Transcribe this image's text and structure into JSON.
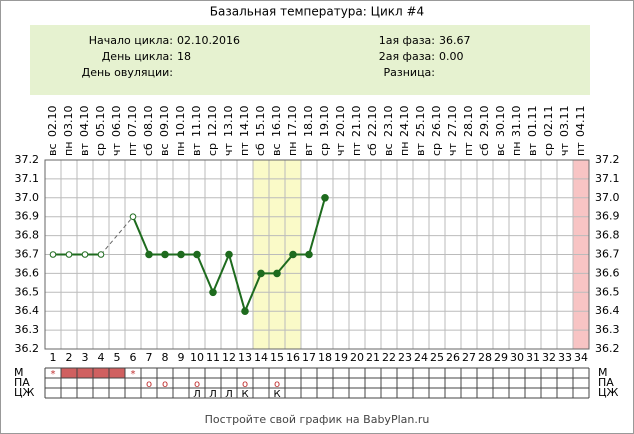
{
  "chart_data": {
    "type": "line",
    "title": "Базальная температура: Цикл #4",
    "info": {
      "left": [
        {
          "label": "Начало цикла:",
          "value": "02.10.2016"
        },
        {
          "label": "День цикла:",
          "value": "18"
        },
        {
          "label": "День овуляции:"
        }
      ],
      "right": [
        {
          "label": "1ая фаза:",
          "value": "36.67"
        },
        {
          "label": "2ая фаза:",
          "value": "0.00"
        },
        {
          "label": "Разница:"
        }
      ]
    },
    "x": [
      1,
      2,
      3,
      4,
      5,
      6,
      7,
      8,
      9,
      10,
      11,
      12,
      13,
      14,
      15,
      16,
      17,
      18,
      19,
      20,
      21,
      22,
      23,
      24,
      25,
      26,
      27,
      28,
      29,
      30,
      31,
      32,
      33,
      34
    ],
    "weekdays": [
      "вс",
      "пн",
      "вт",
      "ср",
      "чт",
      "пт",
      "сб",
      "вс",
      "пн",
      "вт",
      "ср",
      "чт",
      "пт",
      "сб",
      "вс",
      "пн",
      "вт",
      "ср",
      "чт",
      "пт",
      "сб",
      "вс",
      "пн",
      "вт",
      "ср",
      "чт",
      "пт",
      "сб",
      "вс",
      "пн",
      "вт",
      "ср",
      "чт",
      "пт"
    ],
    "dates": [
      "02.10",
      "03.10",
      "04.10",
      "05.10",
      "06.10",
      "07.10",
      "08.10",
      "09.10",
      "10.10",
      "11.10",
      "12.10",
      "13.10",
      "14.10",
      "15.10",
      "16.10",
      "17.10",
      "18.10",
      "19.10",
      "20.10",
      "21.10",
      "22.10",
      "23.10",
      "24.10",
      "25.10",
      "26.10",
      "27.10",
      "28.10",
      "29.10",
      "30.10",
      "31.10",
      "01.11",
      "02.11",
      "03.11",
      "04.11"
    ],
    "values": [
      36.7,
      36.7,
      36.7,
      36.7,
      null,
      36.9,
      36.7,
      36.7,
      36.7,
      36.7,
      36.5,
      36.7,
      36.4,
      36.6,
      36.6,
      36.7,
      36.7,
      37.0,
      null,
      null,
      null,
      null,
      null,
      null,
      null,
      null,
      null,
      null,
      null,
      null,
      null,
      null,
      null,
      null
    ],
    "open_markers": [
      true,
      true,
      true,
      true,
      false,
      true,
      false,
      false,
      false,
      false,
      false,
      false,
      false,
      false,
      false,
      false,
      false,
      false,
      false,
      false,
      false,
      false,
      false,
      false,
      false,
      false,
      false,
      false,
      false,
      false,
      false,
      false,
      false,
      false
    ],
    "color": "#1e6b1e",
    "bridge_gaps": true,
    "xlim": [
      0.5,
      34.5
    ],
    "ylim": [
      36.2,
      37.2
    ],
    "yticks": [
      36.2,
      36.3,
      36.4,
      36.5,
      36.6,
      36.7,
      36.8,
      36.9,
      {
        "value": 37,
        "label": "37.0"
      },
      37.1,
      37.2
    ],
    "grid": true,
    "highlight_days": [
      14,
      15,
      16
    ],
    "highlight_color": "#fafac8",
    "expected_days": [
      34
    ],
    "expected_color": "#f8c4c4",
    "rows": [
      {
        "label": "М",
        "cells": [
          "*",
          null,
          null,
          null,
          null,
          "*",
          null,
          null,
          null,
          null,
          null,
          null,
          null,
          null,
          null,
          null,
          null,
          null,
          null,
          null,
          null,
          null,
          null,
          null,
          null,
          null,
          null,
          null,
          null,
          null,
          null,
          null,
          null,
          null
        ],
        "fill_days": [
          2,
          3,
          4,
          5
        ],
        "fill_color": "#d06060"
      },
      {
        "label": "ПА",
        "cells": [
          null,
          null,
          null,
          null,
          null,
          null,
          "o",
          "o",
          null,
          "o",
          null,
          null,
          "o",
          null,
          "o",
          null,
          null,
          null,
          null,
          null,
          null,
          null,
          null,
          null,
          null,
          null,
          null,
          null,
          null,
          null,
          null,
          null,
          null,
          null
        ]
      },
      {
        "label": "ЦЖ",
        "cells": [
          null,
          null,
          null,
          null,
          null,
          null,
          null,
          null,
          null,
          "Л",
          "Л",
          "Л",
          "К",
          null,
          "К",
          null,
          null,
          null,
          null,
          null,
          null,
          null,
          null,
          null,
          null,
          null,
          null,
          null,
          null,
          null,
          null,
          null,
          null,
          null
        ]
      }
    ],
    "footer": "Постройте свой график на BabyPlan.ru"
  }
}
